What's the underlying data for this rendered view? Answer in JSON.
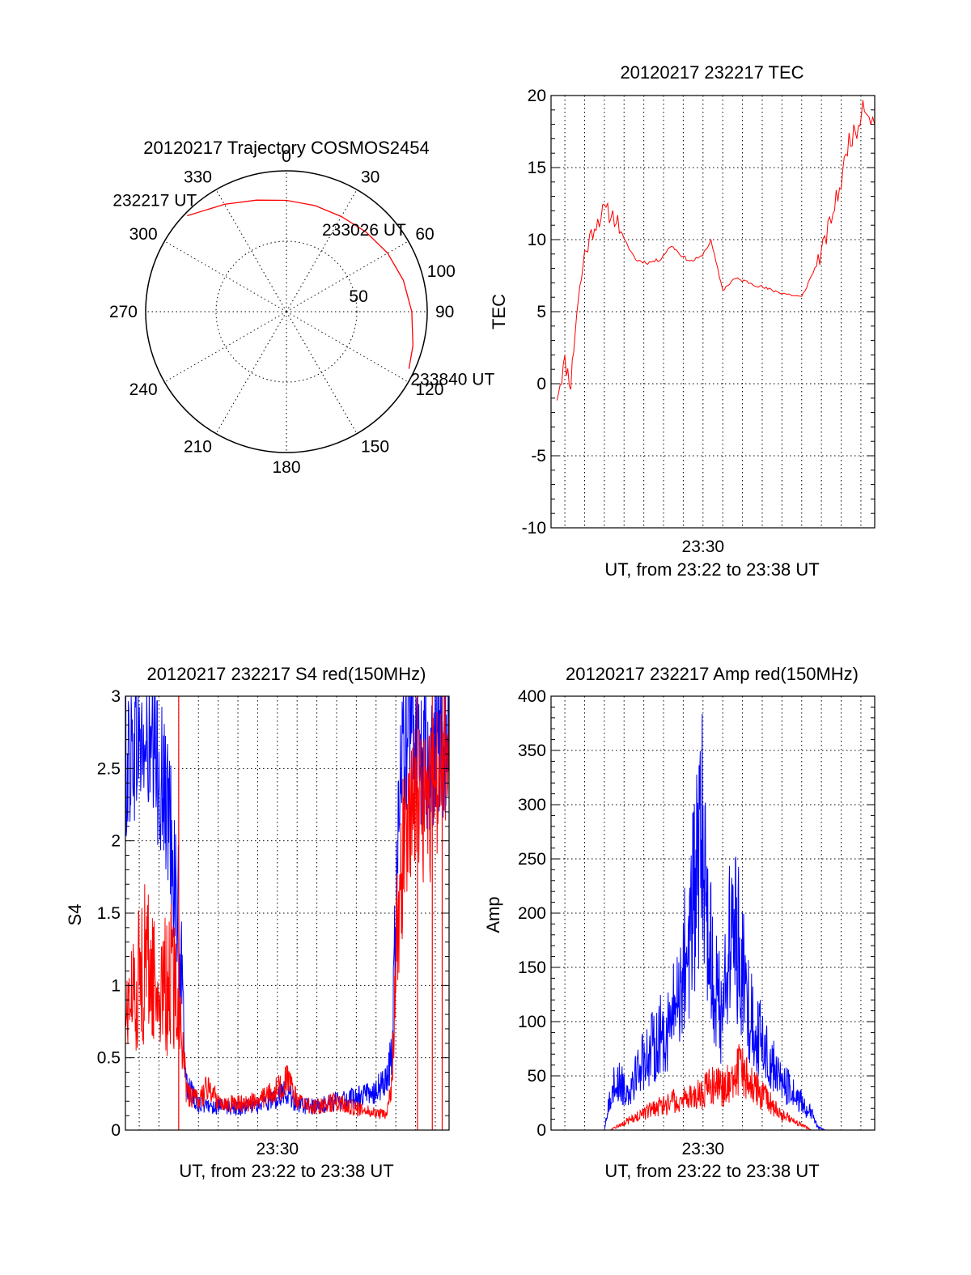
{
  "chart_data": [
    {
      "type": "polar",
      "title": "20120217 Trajectory COSMOS2454",
      "angle_labels": [
        "0",
        "30",
        "60",
        "90",
        "120",
        "150",
        "180",
        "210",
        "240",
        "270",
        "300",
        "330"
      ],
      "radius_labels": [
        "50",
        "100"
      ],
      "rlim": [
        0,
        100
      ],
      "grid": true,
      "series": [
        {
          "color": "#ff0000",
          "points": [
            {
              "az": 314,
              "r": 98
            },
            {
              "az": 330,
              "r": 88
            },
            {
              "az": 345,
              "r": 82
            },
            {
              "az": 0,
              "r": 79
            },
            {
              "az": 15,
              "r": 78
            },
            {
              "az": 30,
              "r": 78
            },
            {
              "az": 45,
              "r": 80
            },
            {
              "az": 60,
              "r": 83
            },
            {
              "az": 75,
              "r": 86
            },
            {
              "az": 90,
              "r": 89
            },
            {
              "az": 105,
              "r": 93
            },
            {
              "az": 115,
              "r": 96
            }
          ]
        }
      ],
      "annotations": [
        {
          "text": "232217 UT",
          "at": {
            "az": 314,
            "r": 98
          }
        },
        {
          "text": "233026 UT",
          "at": {
            "az": 42,
            "r": 79
          }
        },
        {
          "text": "233840 UT",
          "at": {
            "az": 115,
            "r": 96
          }
        }
      ]
    },
    {
      "type": "line",
      "title": "20120217 232217 TEC",
      "ylabel": "TEC",
      "xlabel": "UT, from 23:22 to 23:38 UT",
      "x_tick_labels": [
        {
          "minute": 30,
          "label": "23:30"
        }
      ],
      "xlim": [
        22.3,
        38.7
      ],
      "ylim": [
        -10,
        20
      ],
      "y_ticks": [
        -10,
        -5,
        0,
        5,
        10,
        15,
        20
      ],
      "grid": true,
      "series": [
        {
          "color": "#ff0000",
          "x": [
            22.6,
            23.0,
            23.3,
            23.6,
            24.0,
            24.5,
            25.0,
            25.6,
            26.0,
            26.6,
            27.2,
            27.8,
            28.4,
            29.0,
            29.4,
            29.9,
            30.4,
            31.0,
            31.6,
            31.9,
            32.4,
            32.8,
            33.2,
            34.0,
            35.0,
            36.0,
            37.0,
            37.4,
            37.8,
            38.1,
            38.5,
            38.7
          ],
          "y": [
            -0.8,
            1.5,
            0.0,
            5.0,
            9.0,
            11.0,
            12.0,
            11.5,
            10.0,
            8.6,
            8.4,
            8.6,
            9.6,
            8.8,
            8.5,
            8.8,
            9.9,
            6.5,
            7.3,
            7.2,
            7.0,
            6.8,
            6.6,
            6.3,
            6.0,
            9.0,
            14.0,
            17.0,
            17.5,
            19.6,
            18.5,
            18.0
          ]
        }
      ]
    },
    {
      "type": "line",
      "title": "20120217 232217 S4 red(150MHz)",
      "ylabel": "S4",
      "xlabel": "UT, from 23:22 to 23:38 UT",
      "x_tick_labels": [
        {
          "minute": 30,
          "label": "23:30"
        }
      ],
      "xlim": [
        22.3,
        38.7
      ],
      "ylim": [
        0,
        3
      ],
      "y_ticks": [
        0,
        0.5,
        1,
        1.5,
        2,
        2.5,
        3
      ],
      "grid": true,
      "series": [
        {
          "color": "#0000ff",
          "x": [
            22.3,
            22.8,
            23.4,
            24.0,
            24.6,
            25.0,
            25.4,
            26.0,
            27.0,
            28.0,
            29.0,
            30.0,
            30.5,
            31.0,
            32.0,
            33.0,
            34.0,
            35.0,
            35.5,
            35.8,
            36.0,
            36.3,
            37.0,
            37.6,
            38.3,
            38.7
          ],
          "y": [
            2.5,
            2.7,
            2.6,
            2.5,
            2.1,
            1.4,
            0.3,
            0.18,
            0.16,
            0.15,
            0.17,
            0.22,
            0.28,
            0.17,
            0.16,
            0.2,
            0.22,
            0.28,
            0.35,
            0.5,
            1.5,
            2.7,
            2.7,
            2.6,
            2.7,
            2.7
          ]
        },
        {
          "color": "#ff0000",
          "x": [
            22.3,
            22.8,
            23.4,
            24.0,
            24.6,
            25.0,
            25.4,
            26.0,
            26.5,
            27.0,
            28.0,
            29.0,
            30.0,
            30.5,
            31.0,
            32.0,
            33.0,
            34.0,
            35.0,
            35.5,
            35.8,
            36.0,
            36.4,
            37.0,
            37.6,
            38.3,
            38.7
          ],
          "y": [
            0.8,
            1.0,
            1.2,
            0.9,
            1.1,
            0.9,
            0.25,
            0.2,
            0.3,
            0.2,
            0.18,
            0.2,
            0.28,
            0.35,
            0.2,
            0.16,
            0.2,
            0.15,
            0.12,
            0.1,
            0.3,
            1.2,
            2.0,
            2.3,
            2.2,
            2.5,
            2.5
          ]
        }
      ],
      "spikes": [
        {
          "color": "#ff0000",
          "minutes": [
            25.0,
            37.1,
            37.85,
            38.35
          ]
        }
      ]
    },
    {
      "type": "line",
      "title": "20120217 232217 Amp red(150MHz)",
      "ylabel": "Amp",
      "xlabel": "UT, from 23:22 to 23:38 UT",
      "x_tick_labels": [
        {
          "minute": 30,
          "label": "23:30"
        }
      ],
      "xlim": [
        22.3,
        38.7
      ],
      "ylim": [
        0,
        400
      ],
      "y_ticks": [
        0,
        50,
        100,
        150,
        200,
        250,
        300,
        350,
        400
      ],
      "grid": true,
      "series": [
        {
          "color": "#0000ff",
          "x": [
            22.3,
            25.0,
            25.4,
            25.8,
            26.2,
            26.6,
            27.2,
            27.8,
            28.4,
            28.9,
            29.4,
            29.8,
            30.0,
            30.2,
            30.5,
            30.9,
            31.2,
            31.5,
            31.8,
            32.2,
            32.6,
            33.0,
            33.5,
            34.0,
            34.5,
            35.0,
            35.5,
            35.8,
            36.2,
            38.7
          ],
          "y": [
            0,
            0,
            40,
            45,
            35,
            55,
            70,
            85,
            100,
            140,
            190,
            250,
            270,
            210,
            140,
            110,
            150,
            190,
            170,
            120,
            95,
            80,
            60,
            45,
            35,
            25,
            15,
            3,
            0,
            0
          ]
        },
        {
          "color": "#ff0000",
          "x": [
            22.3,
            25.3,
            25.8,
            26.4,
            27.0,
            27.6,
            28.2,
            28.8,
            29.4,
            30.0,
            30.5,
            31.0,
            31.4,
            31.8,
            32.3,
            32.8,
            33.4,
            34.0,
            34.6,
            35.2,
            35.5,
            38.7
          ],
          "y": [
            0,
            0,
            5,
            10,
            15,
            20,
            25,
            28,
            30,
            35,
            42,
            38,
            45,
            55,
            48,
            35,
            25,
            15,
            8,
            3,
            0,
            0
          ]
        }
      ]
    }
  ]
}
